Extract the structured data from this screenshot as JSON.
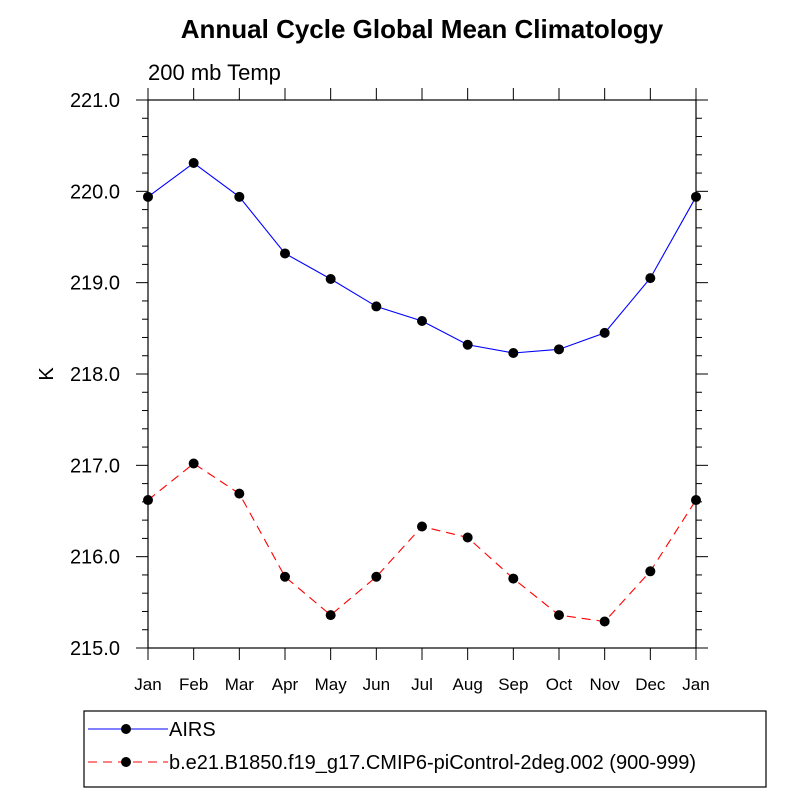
{
  "chart_data": {
    "type": "line",
    "title": "Annual Cycle Global Mean Climatology",
    "subtitle": "200 mb Temp",
    "xlabel": "",
    "ylabel": "K",
    "categories": [
      "Jan",
      "Feb",
      "Mar",
      "Apr",
      "May",
      "Jun",
      "Jul",
      "Aug",
      "Sep",
      "Oct",
      "Nov",
      "Dec",
      "Jan"
    ],
    "ylim": [
      215.0,
      221.0
    ],
    "yticks": [
      "215.0",
      "216.0",
      "217.0",
      "218.0",
      "219.0",
      "220.0",
      "221.0"
    ],
    "grid": false,
    "legend_position": "bottom-left",
    "series": [
      {
        "name": "AIRS",
        "color": "#0000ff",
        "dash": "solid",
        "marker": "filled-circle",
        "values": [
          219.94,
          220.31,
          219.94,
          219.32,
          219.04,
          218.74,
          218.58,
          218.32,
          218.23,
          218.27,
          218.45,
          219.05,
          219.94
        ]
      },
      {
        "name": "b.e21.B1850.f19_g17.CMIP6-piControl-2deg.002 (900-999)",
        "color": "#ff0000",
        "dash": "dashed",
        "marker": "filled-circle",
        "values": [
          216.62,
          217.02,
          216.69,
          215.78,
          215.36,
          215.78,
          216.33,
          216.21,
          215.76,
          215.36,
          215.29,
          215.84,
          216.62
        ]
      }
    ]
  }
}
